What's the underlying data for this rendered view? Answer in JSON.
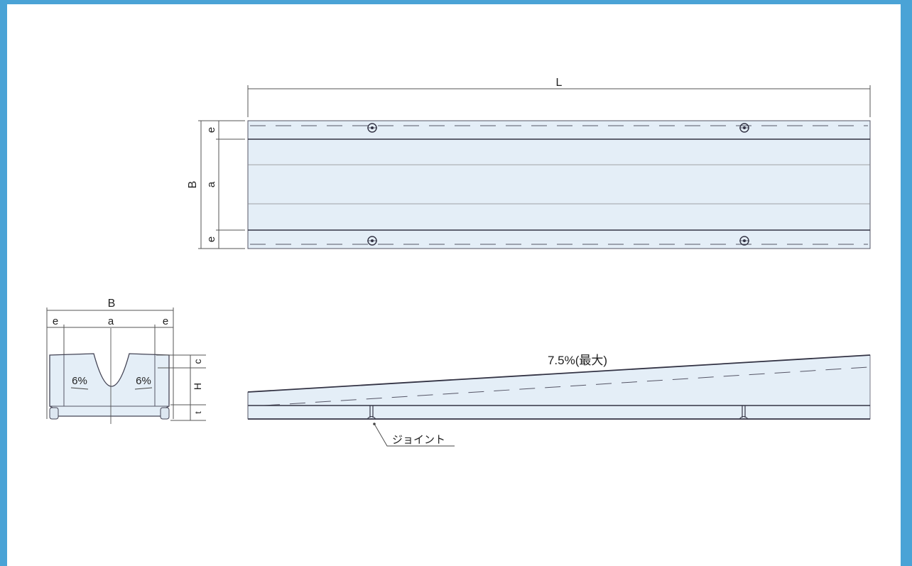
{
  "plan_view": {
    "length_label": "L",
    "width_label": "B",
    "edge_label_top": "e",
    "center_label": "a",
    "edge_label_bottom": "e"
  },
  "section_view": {
    "width_label": "B",
    "edge_label_left": "e",
    "center_label": "a",
    "edge_label_right": "e",
    "slope_left": "6%",
    "slope_right": "6%",
    "height_label_c": "c",
    "height_label_H": "H",
    "height_label_t": "t"
  },
  "side_view": {
    "gradient_label": "7.5%(最大)",
    "joint_label": "ジョイント"
  },
  "colors": {
    "border": "#4aa3d6",
    "fill": "#e4eef7",
    "line": "#334455"
  }
}
